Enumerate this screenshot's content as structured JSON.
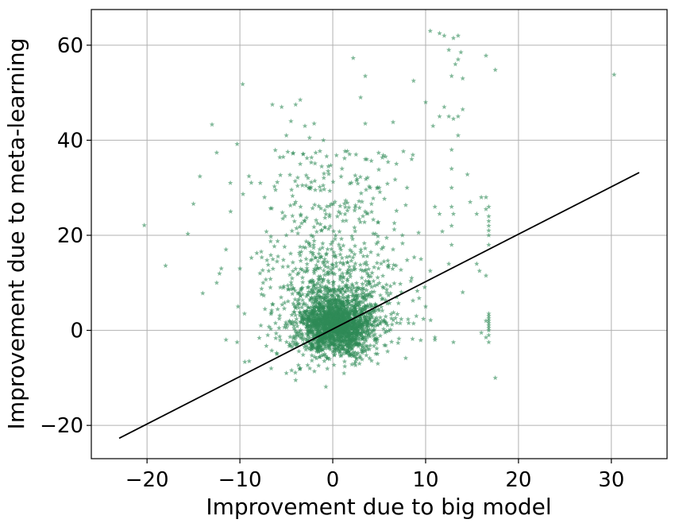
{
  "chart_data": {
    "type": "scatter",
    "title": "",
    "xlabel": "Improvement due to big model",
    "ylabel": "Improvement due to meta-learning",
    "xlim": [
      -26,
      36
    ],
    "ylim": [
      -27,
      67.5
    ],
    "x_ticks": [
      -20,
      -10,
      0,
      10,
      20,
      30
    ],
    "y_ticks": [
      -20,
      0,
      20,
      40,
      60
    ],
    "x_tick_labels": [
      "−20",
      "−10",
      "0",
      "10",
      "20",
      "30"
    ],
    "y_tick_labels": [
      "−20",
      "0",
      "20",
      "40",
      "60"
    ],
    "grid": true,
    "legend": "none",
    "marker": "star",
    "point_color": "#2e8b57",
    "point_alpha": 0.6,
    "line_color": "#000000",
    "reference_line": {
      "x": [
        -23,
        33
      ],
      "y": [
        -22.7,
        33.2
      ]
    },
    "n_points": 2600,
    "points": [
      [
        -20.3,
        22.1
      ],
      [
        -18.0,
        13.6
      ],
      [
        -15.6,
        20.3
      ],
      [
        -15.0,
        26.6
      ],
      [
        -14.3,
        32.4
      ],
      [
        -14.0,
        7.8
      ],
      [
        -13.0,
        43.3
      ],
      [
        -12.5,
        37.4
      ],
      [
        -12.0,
        13.0
      ],
      [
        -11.5,
        17.0
      ],
      [
        -11.0,
        25.0
      ],
      [
        -10.3,
        39.2
      ],
      [
        -10.0,
        13.0
      ],
      [
        -9.7,
        51.8
      ],
      [
        -10.2,
        5.0
      ],
      [
        -9.5,
        3.5
      ],
      [
        -10.3,
        -2.5
      ],
      [
        -9.0,
        -6.5
      ],
      [
        -7.8,
        31.0
      ],
      [
        -6.5,
        47.5
      ],
      [
        -5.5,
        47.0
      ],
      [
        -5.0,
        41.0
      ],
      [
        -4.5,
        44.0
      ],
      [
        -4.0,
        47.5
      ],
      [
        -3.5,
        48.5
      ],
      [
        -3.0,
        43.0
      ],
      [
        -2.5,
        40.5
      ],
      [
        -3.5,
        35.0
      ],
      [
        -2.5,
        30.0
      ],
      [
        -4.0,
        27.0
      ],
      [
        -5.0,
        20.0
      ],
      [
        -6.0,
        14.5
      ],
      [
        -7.5,
        10.0
      ],
      [
        -6.5,
        5.5
      ],
      [
        -7.0,
        -1.0
      ],
      [
        -6.0,
        -5.0
      ],
      [
        -5.0,
        -9.0
      ],
      [
        -4.0,
        -10.5
      ],
      [
        -3.5,
        -8.0
      ],
      [
        -2.0,
        43.5
      ],
      [
        -1.0,
        40.0
      ],
      [
        -0.5,
        33.5
      ],
      [
        1.0,
        34.0
      ],
      [
        2.2,
        57.3
      ],
      [
        3.0,
        49.0
      ],
      [
        3.5,
        53.5
      ],
      [
        3.5,
        43.5
      ],
      [
        2.5,
        37.0
      ],
      [
        3.5,
        36.0
      ],
      [
        5.0,
        30.0
      ],
      [
        6.5,
        43.8
      ],
      [
        8.0,
        30.0
      ],
      [
        10.0,
        48.0
      ],
      [
        8.5,
        36.0
      ],
      [
        10.5,
        63.0
      ],
      [
        11.5,
        62.5
      ],
      [
        12.0,
        62.0
      ],
      [
        13.0,
        61.5
      ],
      [
        13.5,
        62.0
      ],
      [
        13.8,
        58.5
      ],
      [
        13.5,
        57.0
      ],
      [
        12.5,
        59.0
      ],
      [
        13.2,
        56.0
      ],
      [
        12.8,
        53.5
      ],
      [
        14.0,
        53.0
      ],
      [
        16.5,
        57.8
      ],
      [
        17.5,
        54.8
      ],
      [
        30.3,
        53.8
      ],
      [
        8.7,
        52.5
      ],
      [
        10.8,
        43.0
      ],
      [
        11.5,
        45.0
      ],
      [
        12.0,
        47.0
      ],
      [
        12.5,
        45.0
      ],
      [
        13.0,
        44.5
      ],
      [
        13.5,
        45.0
      ],
      [
        14.0,
        46.5
      ],
      [
        13.5,
        41.0
      ],
      [
        12.8,
        38.0
      ],
      [
        12.8,
        34.0
      ],
      [
        12.8,
        30.0
      ],
      [
        12.8,
        26.0
      ],
      [
        12.8,
        22.0
      ],
      [
        12.8,
        18.0
      ],
      [
        14.5,
        32.8
      ],
      [
        11.0,
        26.0
      ],
      [
        11.5,
        24.5
      ],
      [
        13.0,
        24.5
      ],
      [
        14.8,
        27.0
      ],
      [
        16.0,
        28.0
      ],
      [
        16.5,
        28.0
      ],
      [
        16.8,
        26.0
      ],
      [
        16.8,
        24.0
      ],
      [
        16.8,
        22.0
      ],
      [
        16.8,
        20.0
      ],
      [
        16.8,
        18.0
      ],
      [
        16.8,
        21.0
      ],
      [
        16.8,
        23.0
      ],
      [
        16.5,
        25.5
      ],
      [
        15.5,
        24.5
      ],
      [
        15.5,
        14.0
      ],
      [
        15.8,
        12.5
      ],
      [
        16.5,
        11.5
      ],
      [
        16.5,
        2.0
      ],
      [
        16.8,
        3.5
      ],
      [
        16.8,
        3.0
      ],
      [
        16.8,
        2.5
      ],
      [
        16.8,
        2.0
      ],
      [
        16.8,
        1.5
      ],
      [
        16.8,
        1.0
      ],
      [
        16.8,
        0.5
      ],
      [
        16.8,
        0.0
      ],
      [
        16.8,
        -1.0
      ],
      [
        16.8,
        -2.5
      ],
      [
        16.5,
        -1.5
      ],
      [
        16.0,
        -0.5
      ],
      [
        17.5,
        -10.0
      ],
      [
        11.0,
        -1.5
      ],
      [
        11.0,
        -2.0
      ],
      [
        13.0,
        -2.5
      ],
      [
        12.5,
        14.0
      ],
      [
        14.0,
        8.0
      ],
      [
        11.8,
        20.8
      ],
      [
        10.5,
        12.5
      ],
      [
        9.5,
        15.0
      ],
      [
        8.5,
        11.0
      ],
      [
        7.5,
        20.0
      ],
      [
        10.0,
        5.0
      ],
      [
        9.0,
        3.0
      ],
      [
        -11.5,
        -2.0
      ],
      [
        -12.5,
        10.0
      ]
    ]
  }
}
